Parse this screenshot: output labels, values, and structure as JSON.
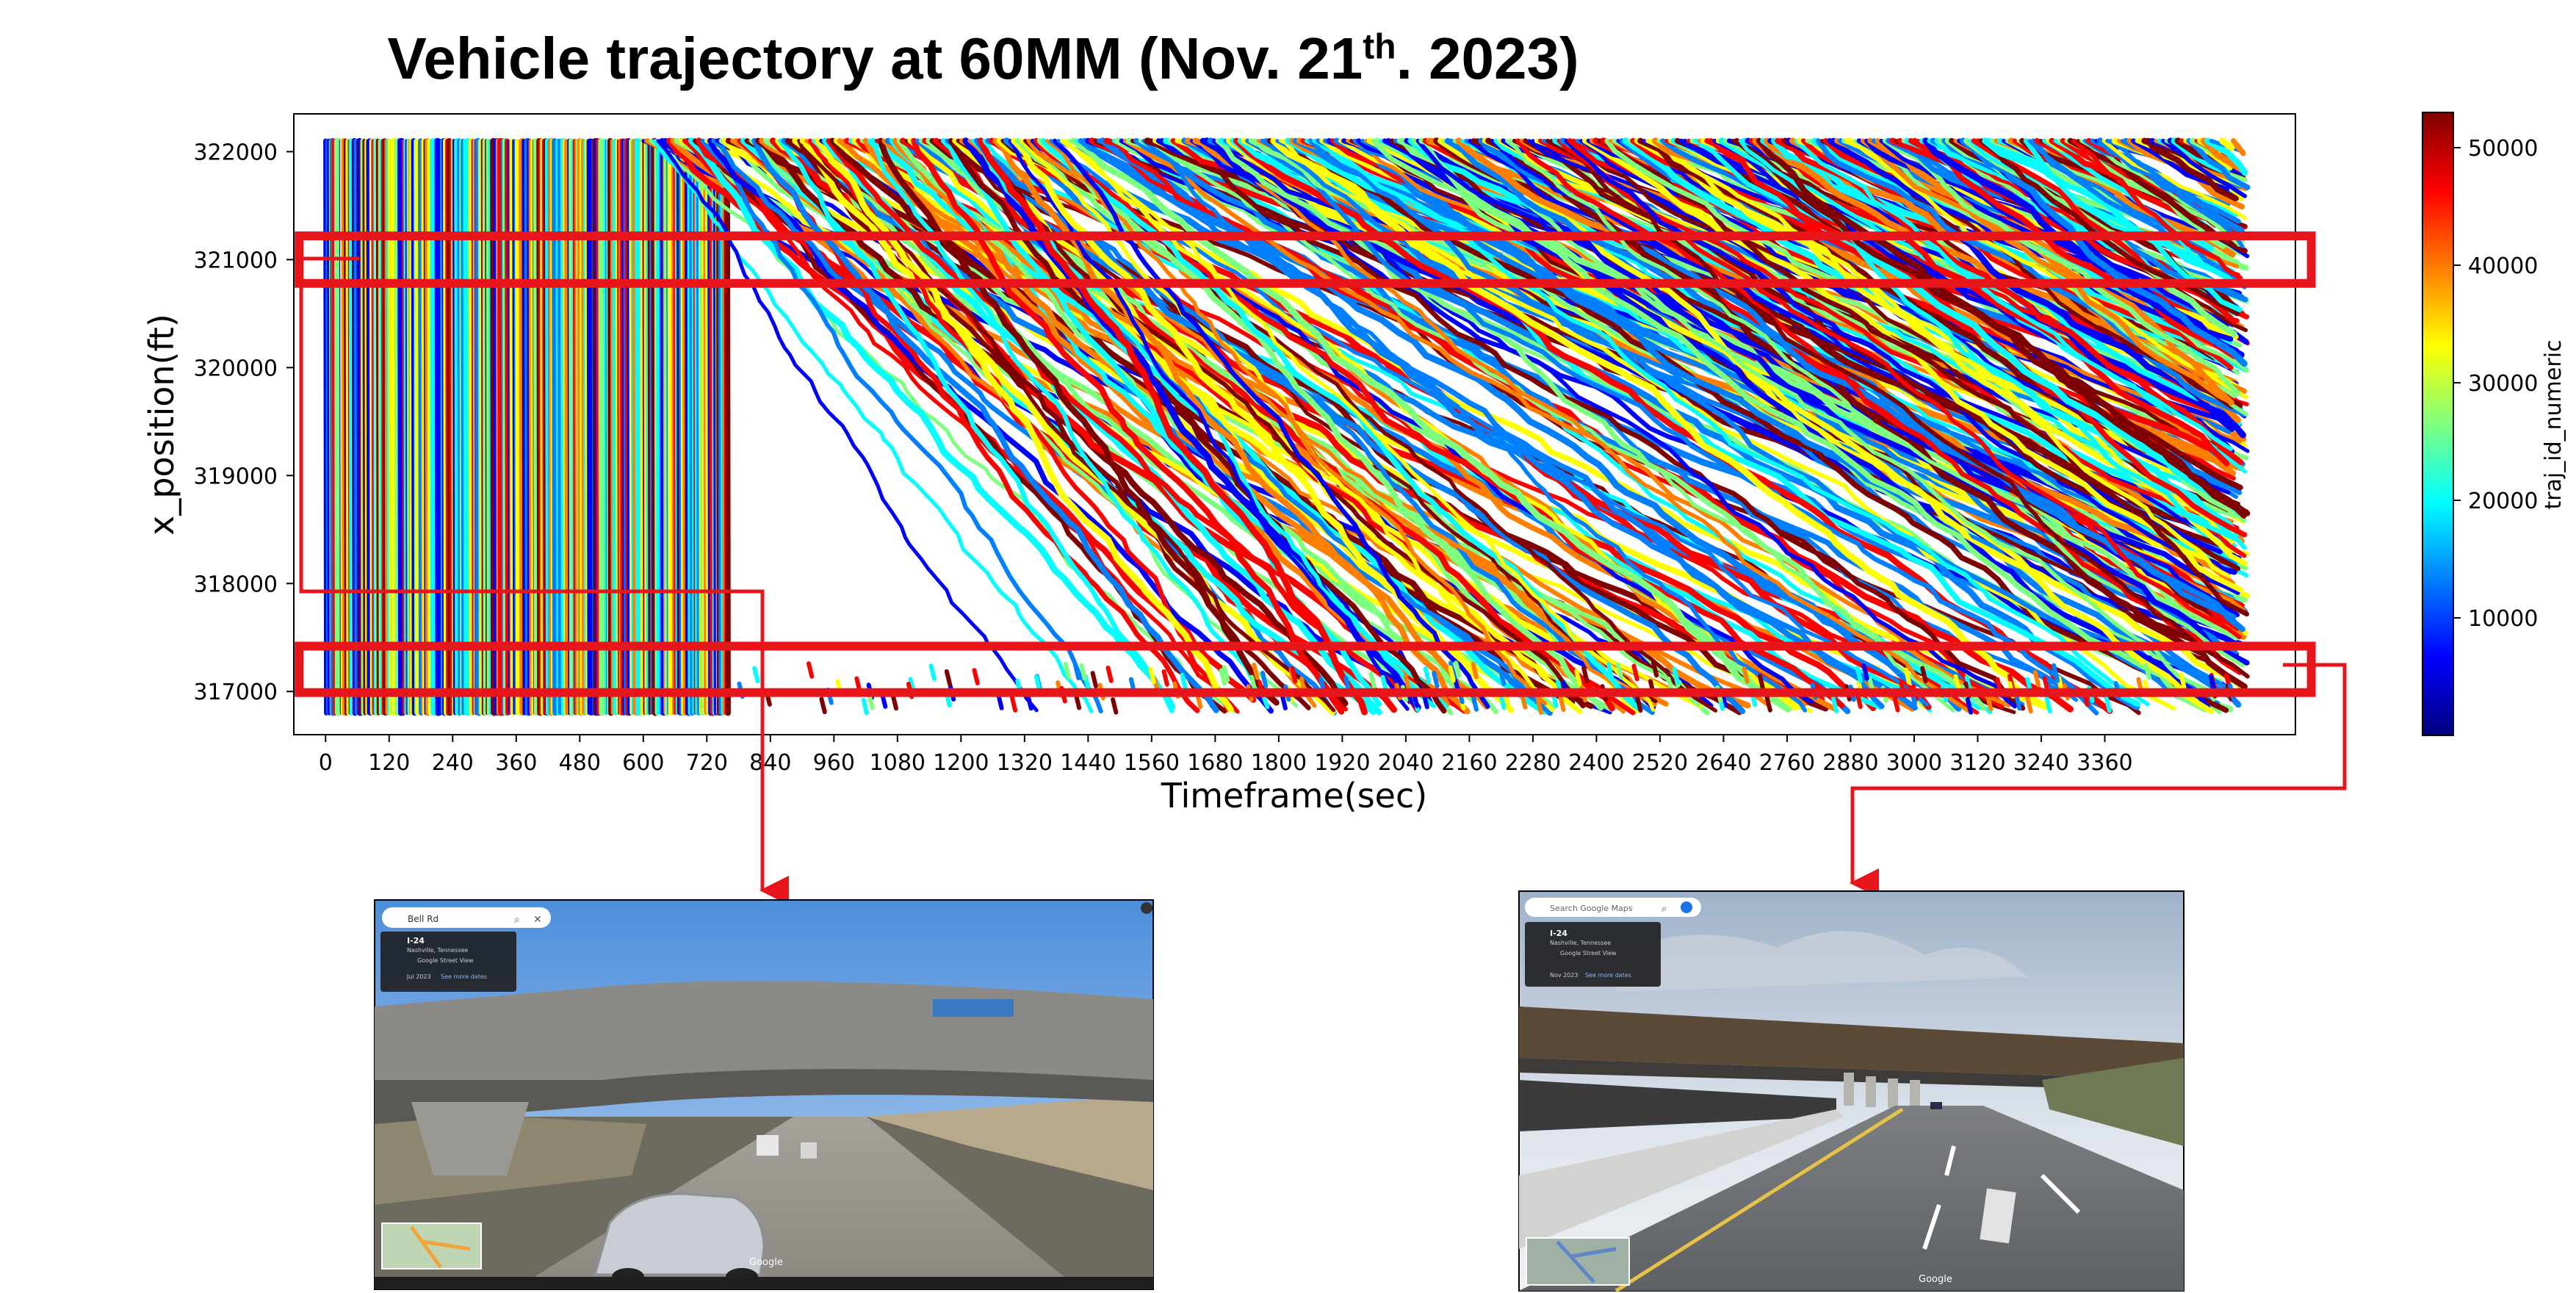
{
  "title": {
    "main": "Vehicle trajectory at 60MM (Nov. 21",
    "sup": "th",
    "tail": ". 2023)"
  },
  "chart_data": {
    "type": "scatter",
    "xlabel": "Timeframe(sec)",
    "ylabel": "x_position(ft)",
    "xlim": [
      -60,
      3720
    ],
    "ylim": [
      316600,
      322350
    ],
    "data_x_range": [
      0,
      3600
    ],
    "data_y_range": [
      316800,
      322100
    ],
    "x_ticks": [
      0,
      120,
      240,
      360,
      480,
      600,
      720,
      840,
      960,
      1080,
      1200,
      1320,
      1440,
      1560,
      1680,
      1800,
      1920,
      2040,
      2160,
      2280,
      2400,
      2520,
      2640,
      2760,
      2880,
      3000,
      3120,
      3240,
      3360
    ],
    "y_ticks": [
      317000,
      318000,
      319000,
      320000,
      321000,
      322000
    ],
    "grid": false,
    "colorbar": {
      "label": "traj_id_numeric",
      "ticks": [
        10000,
        20000,
        30000,
        40000,
        50000
      ],
      "range": [
        0,
        53000
      ],
      "colormap": "jet"
    },
    "highlight_regions": [
      {
        "x_range": [
          -50,
          3750
        ],
        "y_range": [
          320780,
          321220
        ],
        "color": "#e8161b"
      },
      {
        "x_range": [
          -50,
          3750
        ],
        "y_range": [
          316990,
          317420
        ],
        "color": "#e8161b"
      }
    ]
  },
  "screenshots": {
    "left": {
      "search_text": "Bell Rd",
      "panel_title": "I-24",
      "panel_subtitle": "Nashville, Tennessee",
      "panel_source": "Google Street View",
      "panel_date": "Jul 2023",
      "panel_link": "See more dates",
      "watermark": "Google"
    },
    "right": {
      "search_text": "Search Google Maps",
      "panel_title": "I-24",
      "panel_subtitle": "Nashville, Tennessee",
      "panel_source": "Google Street View",
      "panel_date": "Nov 2023",
      "panel_link": "See more dates",
      "watermark": "Google"
    }
  },
  "colors": {
    "highlight": "#e8161b",
    "jet": [
      "#00007f",
      "#0000ff",
      "#007fff",
      "#00ffff",
      "#7fff7f",
      "#ffff00",
      "#ff7f00",
      "#ff0000",
      "#7f0000"
    ]
  }
}
